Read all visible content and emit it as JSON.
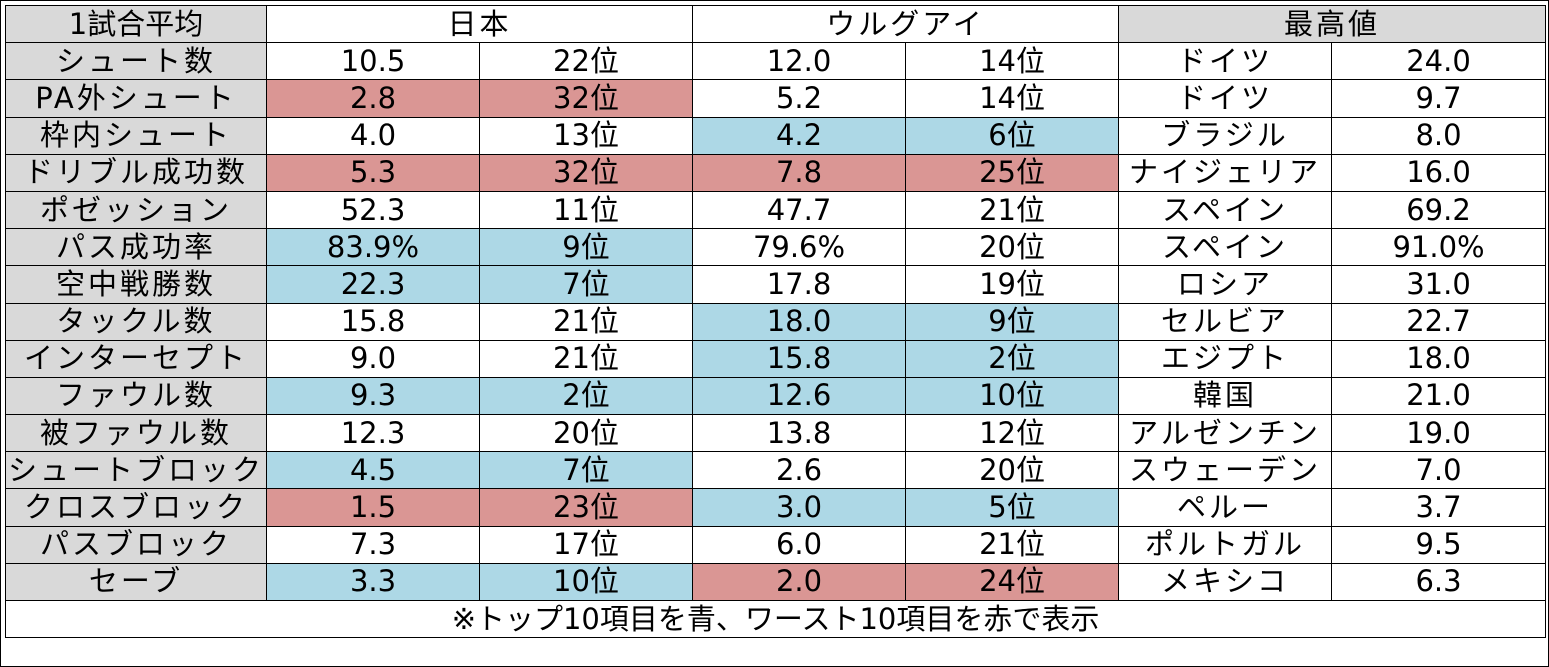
{
  "header": {
    "label": "1試合平均",
    "japan": "日本",
    "uruguay": "ウルグアイ",
    "best": "最高値"
  },
  "colors": {
    "top10": "#add8e6",
    "worst10": "#da9694",
    "header": "#d9d9d9"
  },
  "rows": [
    {
      "label": "シュート数",
      "jp_val": "10.5",
      "jp_rank": "22位",
      "jp_hl": "none",
      "uy_val": "12.0",
      "uy_rank": "14位",
      "uy_hl": "none",
      "best_team": "ドイツ",
      "best_val": "24.0"
    },
    {
      "label": "PA外シュート",
      "jp_val": "2.8",
      "jp_rank": "32位",
      "jp_hl": "red",
      "uy_val": "5.2",
      "uy_rank": "14位",
      "uy_hl": "none",
      "best_team": "ドイツ",
      "best_val": "9.7"
    },
    {
      "label": "枠内シュート",
      "jp_val": "4.0",
      "jp_rank": "13位",
      "jp_hl": "none",
      "uy_val": "4.2",
      "uy_rank": "6位",
      "uy_hl": "blue",
      "best_team": "ブラジル",
      "best_val": "8.0"
    },
    {
      "label": "ドリブル成功数",
      "jp_val": "5.3",
      "jp_rank": "32位",
      "jp_hl": "red",
      "uy_val": "7.8",
      "uy_rank": "25位",
      "uy_hl": "red",
      "best_team": "ナイジェリア",
      "best_val": "16.0"
    },
    {
      "label": "ポゼッション",
      "jp_val": "52.3",
      "jp_rank": "11位",
      "jp_hl": "none",
      "uy_val": "47.7",
      "uy_rank": "21位",
      "uy_hl": "none",
      "best_team": "スペイン",
      "best_val": "69.2"
    },
    {
      "label": "パス成功率",
      "jp_val": "83.9%",
      "jp_rank": "9位",
      "jp_hl": "blue",
      "uy_val": "79.6%",
      "uy_rank": "20位",
      "uy_hl": "none",
      "best_team": "スペイン",
      "best_val": "91.0%"
    },
    {
      "label": "空中戦勝数",
      "jp_val": "22.3",
      "jp_rank": "7位",
      "jp_hl": "blue",
      "uy_val": "17.8",
      "uy_rank": "19位",
      "uy_hl": "none",
      "best_team": "ロシア",
      "best_val": "31.0"
    },
    {
      "label": "タックル数",
      "jp_val": "15.8",
      "jp_rank": "21位",
      "jp_hl": "none",
      "uy_val": "18.0",
      "uy_rank": "9位",
      "uy_hl": "blue",
      "best_team": "セルビア",
      "best_val": "22.7"
    },
    {
      "label": "インターセプト",
      "jp_val": "9.0",
      "jp_rank": "21位",
      "jp_hl": "none",
      "uy_val": "15.8",
      "uy_rank": "2位",
      "uy_hl": "blue",
      "best_team": "エジプト",
      "best_val": "18.0"
    },
    {
      "label": "ファウル数",
      "jp_val": "9.3",
      "jp_rank": "2位",
      "jp_hl": "blue",
      "uy_val": "12.6",
      "uy_rank": "10位",
      "uy_hl": "blue",
      "best_team": "韓国",
      "best_val": "21.0"
    },
    {
      "label": "被ファウル数",
      "jp_val": "12.3",
      "jp_rank": "20位",
      "jp_hl": "none",
      "uy_val": "13.8",
      "uy_rank": "12位",
      "uy_hl": "none",
      "best_team": "アルゼンチン",
      "best_val": "19.0"
    },
    {
      "label": "シュートブロック",
      "jp_val": "4.5",
      "jp_rank": "7位",
      "jp_hl": "blue",
      "uy_val": "2.6",
      "uy_rank": "20位",
      "uy_hl": "none",
      "best_team": "スウェーデン",
      "best_val": "7.0"
    },
    {
      "label": "クロスブロック",
      "jp_val": "1.5",
      "jp_rank": "23位",
      "jp_hl": "red",
      "uy_val": "3.0",
      "uy_rank": "5位",
      "uy_hl": "blue",
      "best_team": "ペルー",
      "best_val": "3.7"
    },
    {
      "label": "パスブロック",
      "jp_val": "7.3",
      "jp_rank": "17位",
      "jp_hl": "none",
      "uy_val": "6.0",
      "uy_rank": "21位",
      "uy_hl": "none",
      "best_team": "ポルトガル",
      "best_val": "9.5"
    },
    {
      "label": "セーブ",
      "jp_val": "3.3",
      "jp_rank": "10位",
      "jp_hl": "blue",
      "uy_val": "2.0",
      "uy_rank": "24位",
      "uy_hl": "red",
      "best_team": "メキシコ",
      "best_val": "6.3"
    }
  ],
  "note": "※トップ10項目を青、ワースト10項目を赤で表示"
}
